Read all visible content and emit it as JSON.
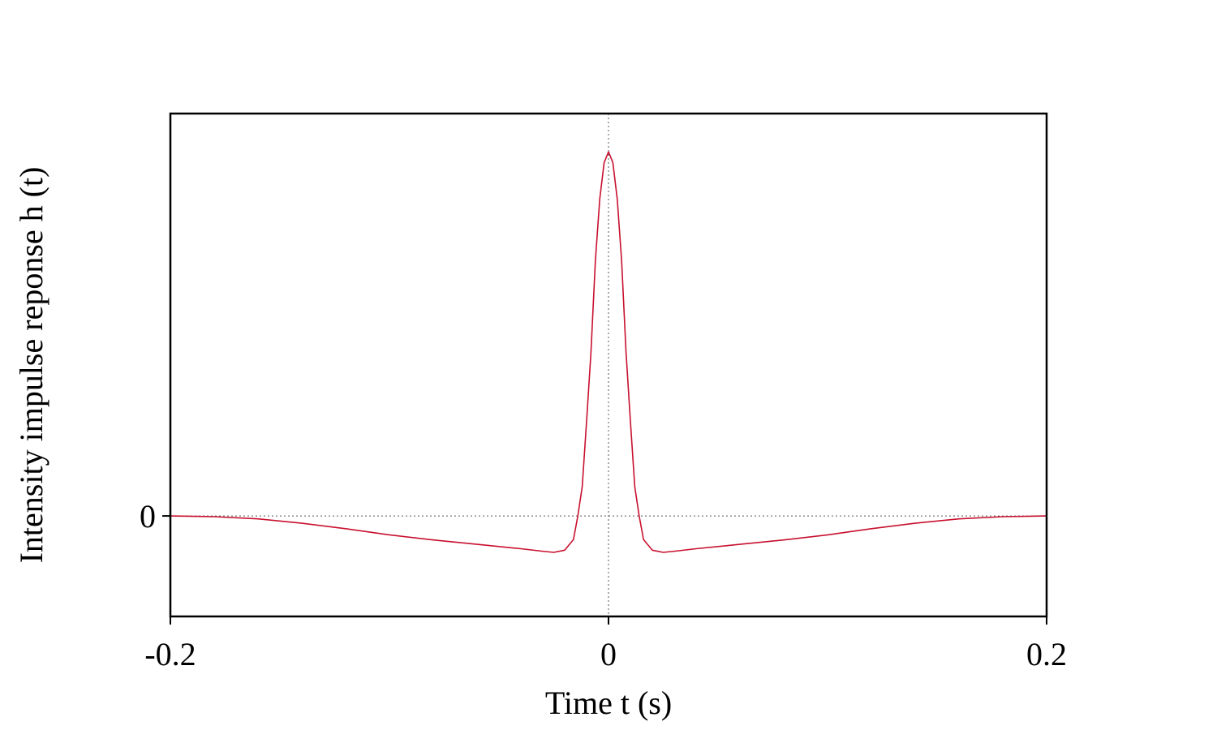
{
  "chart_data": {
    "type": "line",
    "x_label": "Time t (s)",
    "y_label": "Intensity impulse reponse h (t)",
    "x": [
      -0.2,
      -0.18,
      -0.16,
      -0.14,
      -0.12,
      -0.1,
      -0.08,
      -0.06,
      -0.04,
      -0.03,
      -0.025,
      -0.02,
      -0.016,
      -0.014,
      -0.012,
      -0.01,
      -0.008,
      -0.006,
      -0.004,
      -0.002,
      0,
      0.002,
      0.004,
      0.006,
      0.008,
      0.01,
      0.012,
      0.014,
      0.016,
      0.02,
      0.025,
      0.03,
      0.04,
      0.06,
      0.08,
      0.1,
      0.12,
      0.14,
      0.16,
      0.18,
      0.2
    ],
    "series": [
      {
        "color": "#c8102e",
        "values": [
          0,
          -0.002,
          -0.008,
          -0.02,
          -0.035,
          -0.052,
          -0.066,
          -0.078,
          -0.09,
          -0.097,
          -0.1,
          -0.094,
          -0.065,
          0,
          0.08,
          0.26,
          0.45,
          0.7,
          0.87,
          0.97,
          1.0,
          0.97,
          0.87,
          0.7,
          0.45,
          0.26,
          0.08,
          0,
          -0.065,
          -0.094,
          -0.1,
          -0.097,
          -0.09,
          -0.078,
          -0.066,
          -0.052,
          -0.035,
          -0.02,
          -0.008,
          -0.002,
          0
        ]
      }
    ],
    "xlim": [
      -0.2,
      0.2
    ],
    "xticks": [
      -0.2,
      0,
      0.2
    ],
    "ylim": [
      -0.276,
      1.105
    ],
    "yticks": [
      0
    ]
  }
}
